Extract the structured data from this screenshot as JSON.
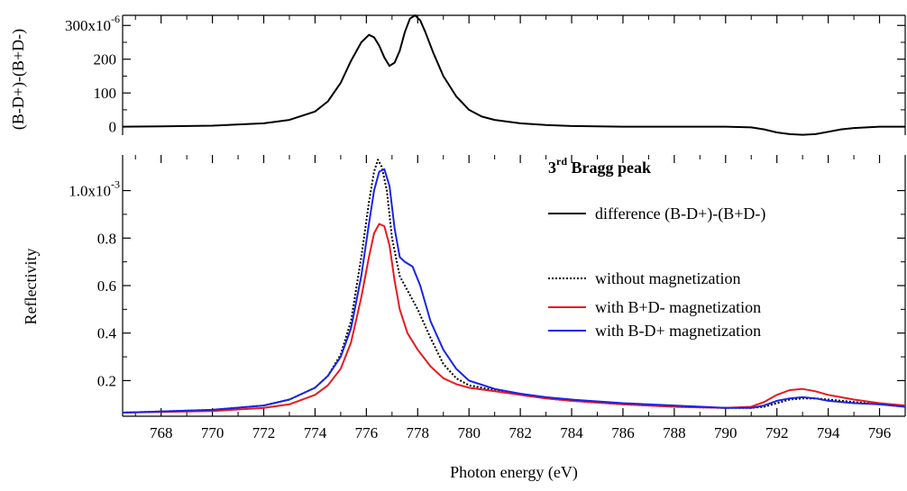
{
  "chart_data": [
    {
      "id": "top",
      "type": "line",
      "ylabel": "(B-D+)-(B+D-)",
      "xlim": [
        766.5,
        797
      ],
      "ylim": [
        -25,
        330
      ],
      "yticks": [
        0,
        100,
        200,
        300
      ],
      "yticklabels": [
        "0",
        "100",
        "200",
        "300x10"
      ],
      "ytick_exponent": "-6",
      "series": [
        {
          "name": "difference (B-D+)-(B+D-)",
          "color": "#000000",
          "style": "solid",
          "x": [
            766.5,
            768,
            770,
            772,
            773,
            774,
            774.5,
            775,
            775.4,
            775.8,
            776.1,
            776.3,
            776.5,
            776.7,
            776.9,
            777.1,
            777.3,
            777.5,
            777.7,
            777.9,
            778.1,
            778.3,
            778.6,
            779,
            779.5,
            780,
            780.5,
            781,
            782,
            783,
            784,
            785,
            786,
            788,
            790,
            791,
            791.5,
            792,
            792.5,
            793,
            793.5,
            794,
            794.5,
            795,
            796,
            797
          ],
          "y": [
            0,
            1,
            3,
            10,
            20,
            45,
            75,
            130,
            195,
            250,
            272,
            265,
            240,
            205,
            180,
            190,
            225,
            280,
            320,
            330,
            315,
            280,
            220,
            150,
            90,
            50,
            30,
            20,
            10,
            5,
            2,
            1,
            0,
            0,
            0,
            -2,
            -8,
            -17,
            -22,
            -24,
            -22,
            -15,
            -8,
            -4,
            0,
            0
          ]
        }
      ]
    },
    {
      "id": "bottom",
      "type": "line",
      "title": "3rd Bragg peak",
      "title_main": "3",
      "title_sup": "rd",
      "title_rest": " Bragg peak",
      "xlabel": "Photon energy (eV)",
      "ylabel": "Reflectivity",
      "xlim": [
        766.5,
        797
      ],
      "ylim": [
        0.05,
        1.15
      ],
      "xticks": [
        768,
        770,
        772,
        774,
        776,
        778,
        780,
        782,
        784,
        786,
        788,
        790,
        792,
        794,
        796
      ],
      "yticks": [
        0.2,
        0.4,
        0.6,
        0.8,
        1.0
      ],
      "yticklabels": [
        "0.2",
        "0.4",
        "0.6",
        "0.8",
        "1.0x10"
      ],
      "ytick_exponent": "-3",
      "legend": {
        "placement": "right",
        "entries": [
          {
            "label": "difference (B-D+)-(B+D-)",
            "color": "#000000",
            "style": "solid"
          },
          {
            "label": "without magnetization",
            "color": "#000000",
            "style": "dotted"
          },
          {
            "label": "with B+D- magnetization",
            "color": "#e8191e",
            "style": "solid"
          },
          {
            "label": "with B-D+ magnetization",
            "color": "#1a24e8",
            "style": "solid"
          }
        ]
      },
      "series": [
        {
          "name": "without magnetization",
          "color": "#000000",
          "style": "dotted",
          "x": [
            766.5,
            768,
            770,
            772,
            773,
            774,
            774.5,
            775,
            775.4,
            775.8,
            776.1,
            776.3,
            776.45,
            776.6,
            776.8,
            777,
            777.3,
            777.6,
            778,
            778.5,
            779,
            779.5,
            780,
            781,
            782,
            783,
            784,
            786,
            788,
            790,
            791,
            791.5,
            792,
            792.5,
            793,
            793.5,
            794,
            795,
            796,
            797
          ],
          "y": [
            0.065,
            0.07,
            0.077,
            0.095,
            0.12,
            0.17,
            0.22,
            0.31,
            0.45,
            0.72,
            0.95,
            1.08,
            1.13,
            1.1,
            1.0,
            0.8,
            0.64,
            0.58,
            0.5,
            0.38,
            0.27,
            0.21,
            0.18,
            0.16,
            0.14,
            0.125,
            0.115,
            0.1,
            0.09,
            0.085,
            0.085,
            0.09,
            0.105,
            0.12,
            0.125,
            0.125,
            0.12,
            0.11,
            0.1,
            0.09
          ]
        },
        {
          "name": "with B+D- magnetization",
          "color": "#e8191e",
          "style": "solid",
          "x": [
            766.5,
            768,
            770,
            772,
            773,
            774,
            774.5,
            775,
            775.4,
            775.8,
            776.1,
            776.3,
            776.5,
            776.7,
            776.9,
            777.1,
            777.3,
            777.6,
            778,
            778.5,
            779,
            779.5,
            780,
            781,
            782,
            783,
            784,
            786,
            788,
            790,
            791,
            791.5,
            792,
            792.5,
            793,
            793.5,
            794,
            794.5,
            795,
            796,
            797
          ],
          "y": [
            0.065,
            0.068,
            0.072,
            0.085,
            0.1,
            0.14,
            0.18,
            0.25,
            0.36,
            0.55,
            0.72,
            0.82,
            0.86,
            0.85,
            0.77,
            0.62,
            0.5,
            0.4,
            0.33,
            0.26,
            0.21,
            0.185,
            0.17,
            0.155,
            0.14,
            0.125,
            0.115,
            0.1,
            0.09,
            0.085,
            0.09,
            0.11,
            0.14,
            0.16,
            0.165,
            0.155,
            0.14,
            0.13,
            0.12,
            0.105,
            0.095
          ]
        },
        {
          "name": "with B-D+ magnetization",
          "color": "#1a24e8",
          "style": "solid",
          "x": [
            766.5,
            768,
            770,
            772,
            773,
            774,
            774.5,
            775,
            775.4,
            775.8,
            776.1,
            776.3,
            776.5,
            776.7,
            776.9,
            777.1,
            777.3,
            777.5,
            777.8,
            778.1,
            778.5,
            779,
            779.5,
            780,
            781,
            782,
            783,
            784,
            786,
            788,
            790,
            791,
            791.5,
            792,
            792.5,
            793,
            793.5,
            794,
            795,
            796,
            797
          ],
          "y": [
            0.065,
            0.07,
            0.077,
            0.095,
            0.12,
            0.17,
            0.22,
            0.3,
            0.42,
            0.64,
            0.86,
            1.0,
            1.08,
            1.09,
            1.02,
            0.84,
            0.72,
            0.7,
            0.68,
            0.6,
            0.45,
            0.33,
            0.25,
            0.2,
            0.165,
            0.145,
            0.13,
            0.12,
            0.105,
            0.095,
            0.085,
            0.085,
            0.095,
            0.115,
            0.125,
            0.13,
            0.125,
            0.115,
            0.105,
            0.1,
            0.09
          ]
        }
      ]
    }
  ]
}
